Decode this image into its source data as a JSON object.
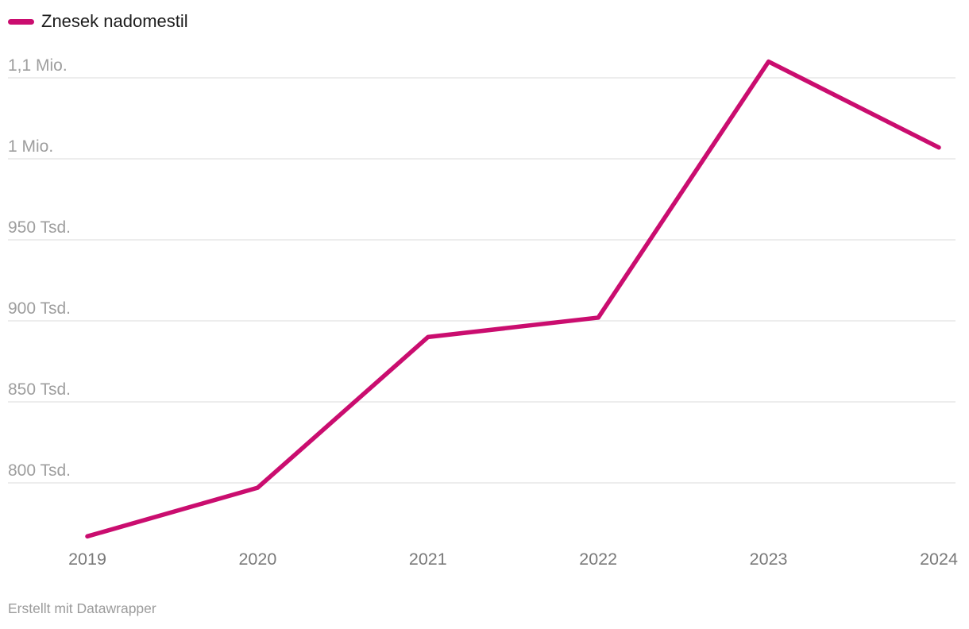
{
  "legend": {
    "label": "Znesek nadomestil"
  },
  "footer": {
    "attribution": "Erstellt mit Datawrapper"
  },
  "colors": {
    "line": "#ca0d6f",
    "grid": "#e7e7e7",
    "y_tick_label": "#9e9e9e",
    "x_tick_label": "#7a7a7a",
    "legend_text": "#1d1d1d",
    "footer_text": "#9b9b9b",
    "background": "#ffffff"
  },
  "chart_data": {
    "type": "line",
    "title": "",
    "categories": [
      "2019",
      "2020",
      "2021",
      "2022",
      "2023",
      "2024"
    ],
    "series": [
      {
        "name": "Znesek nadomestil",
        "values": [
          767000,
          797000,
          890000,
          902000,
          1060000,
          1007000
        ]
      }
    ],
    "yticks": [
      {
        "value": 800000,
        "label": "800 Tsd."
      },
      {
        "value": 850000,
        "label": "850 Tsd."
      },
      {
        "value": 900000,
        "label": "900 Tsd."
      },
      {
        "value": 950000,
        "label": "950 Tsd."
      },
      {
        "value": 1000000,
        "label": "1 Mio."
      },
      {
        "value": 1050000,
        "label": "1,1 Mio."
      }
    ],
    "ylim": [
      762000,
      1065000
    ],
    "grid": true,
    "legend_position": "top-left",
    "xlabel": "",
    "ylabel": ""
  }
}
